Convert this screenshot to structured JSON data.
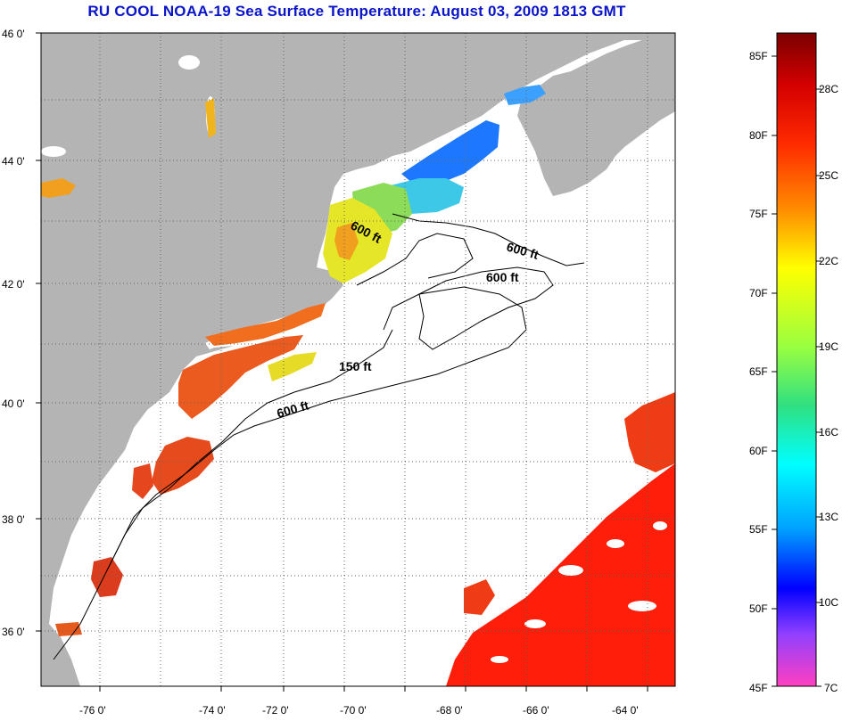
{
  "title": "RU COOL  NOAA-19  Sea Surface Temperature:  August 03, 2009 1813 GMT",
  "axes": {
    "lat_labels": [
      "46 0'",
      "44 0'",
      "42 0'",
      "40 0'",
      "38 0'",
      "36 0'"
    ],
    "lon_labels": [
      "-76 0'",
      "-74 0'",
      "-72 0'",
      "-70 0'",
      "-68 0'",
      "-66 0'",
      "-64 0'"
    ]
  },
  "depth_labels": [
    "600 ft",
    "600 ft",
    "600 ft",
    "150 ft",
    "600 ft"
  ],
  "colorbar": {
    "fahrenheit": [
      "85F",
      "80F",
      "75F",
      "70F",
      "65F",
      "60F",
      "55F",
      "50F",
      "45F"
    ],
    "celsius": [
      "28C",
      "25C",
      "22C",
      "19C",
      "16C",
      "13C",
      "10C",
      "7C"
    ]
  },
  "colors": {
    "land": "#b4b4b4",
    "title": "#0a14c8",
    "warm": "#e8281e",
    "hot": "#ff1a0a"
  }
}
